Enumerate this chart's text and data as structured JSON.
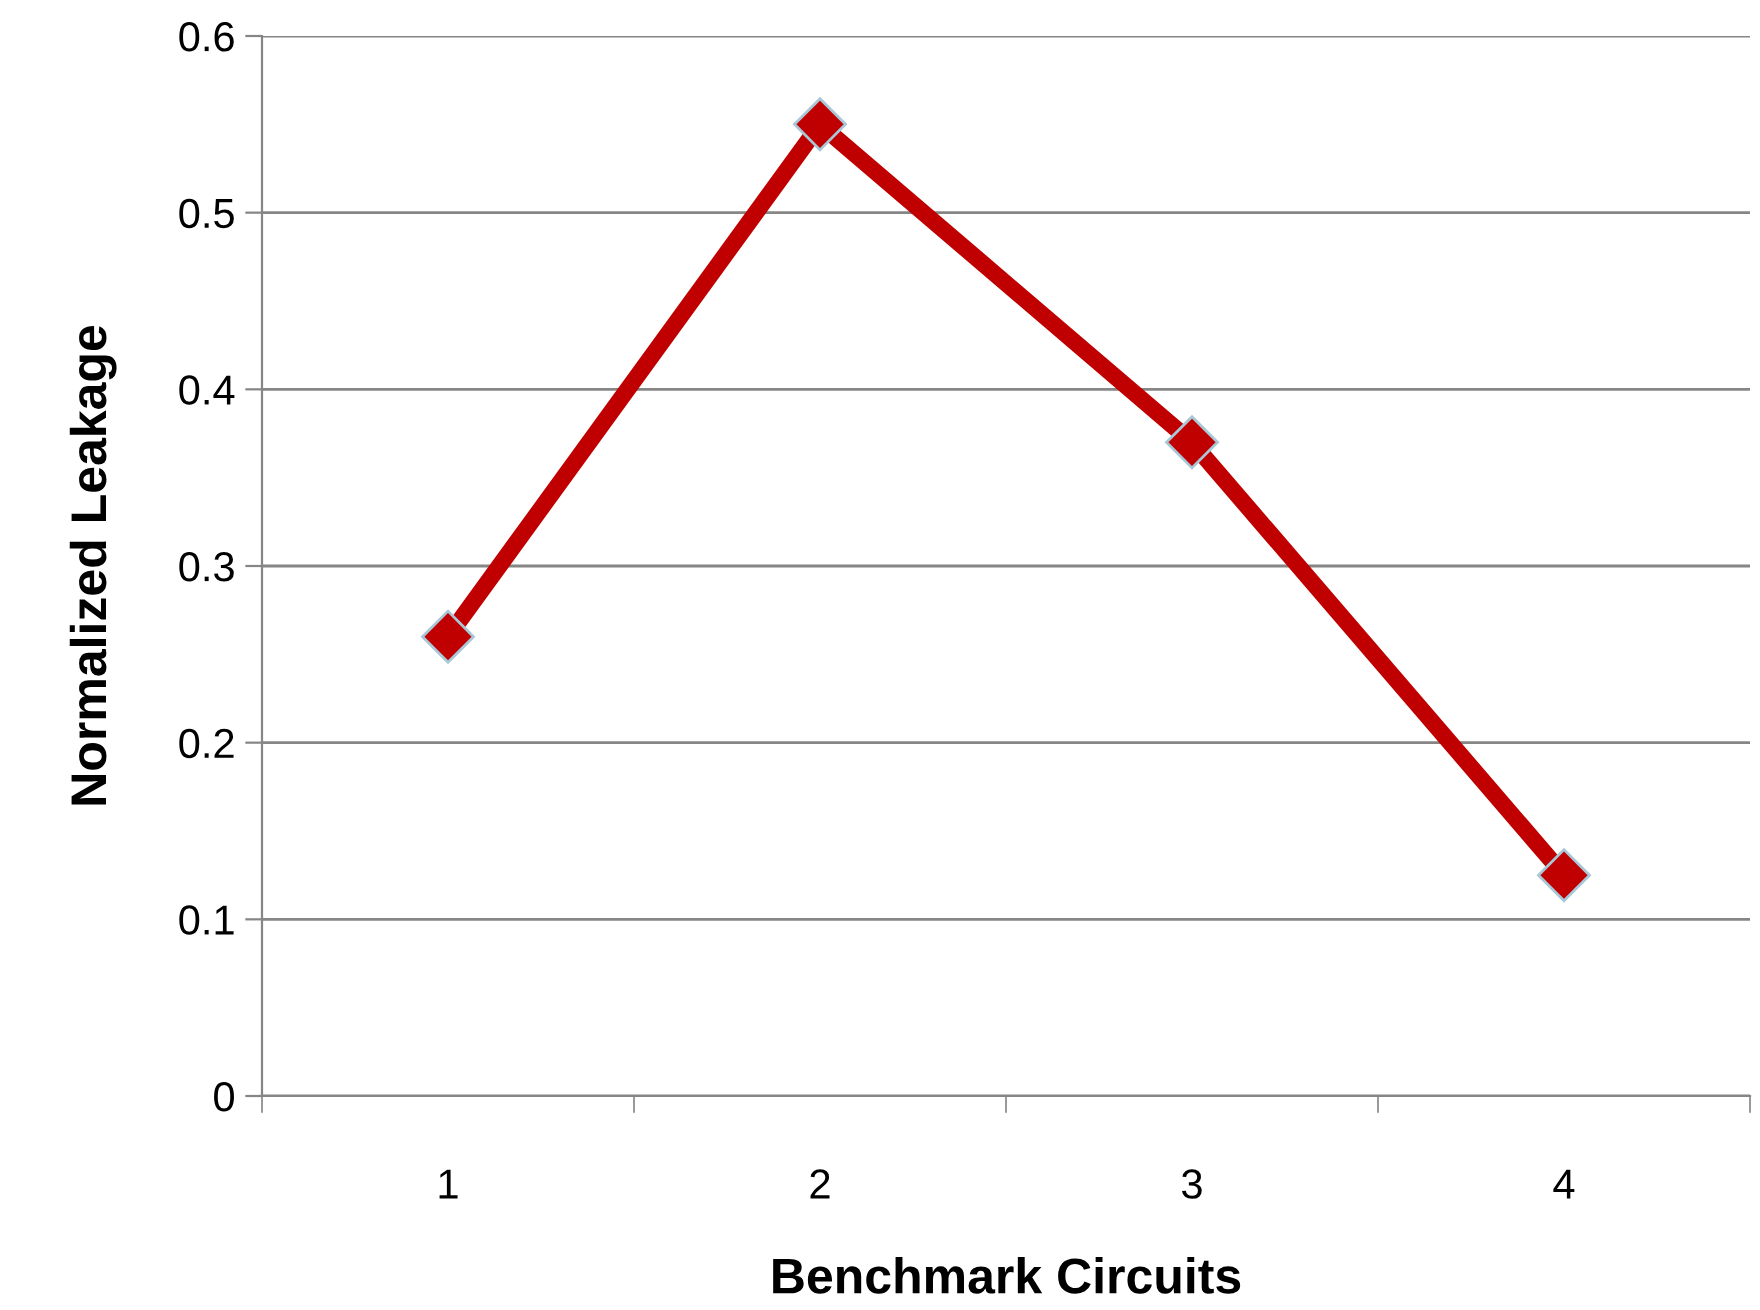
{
  "chart_data": {
    "type": "line",
    "xlabel": "Benchmark Circuits",
    "ylabel": "Normalized Leakage",
    "categories": [
      "1",
      "2",
      "3",
      "4"
    ],
    "series": [
      {
        "color": "#c00000",
        "values": [
          0.26,
          0.55,
          0.37,
          0.125
        ]
      }
    ],
    "ylim": [
      0,
      0.6
    ],
    "yticks": [
      0,
      0.1,
      0.2,
      0.3,
      0.4,
      0.5,
      0.6
    ],
    "grid": "y",
    "marker": "diamond",
    "line_style": "solid"
  }
}
